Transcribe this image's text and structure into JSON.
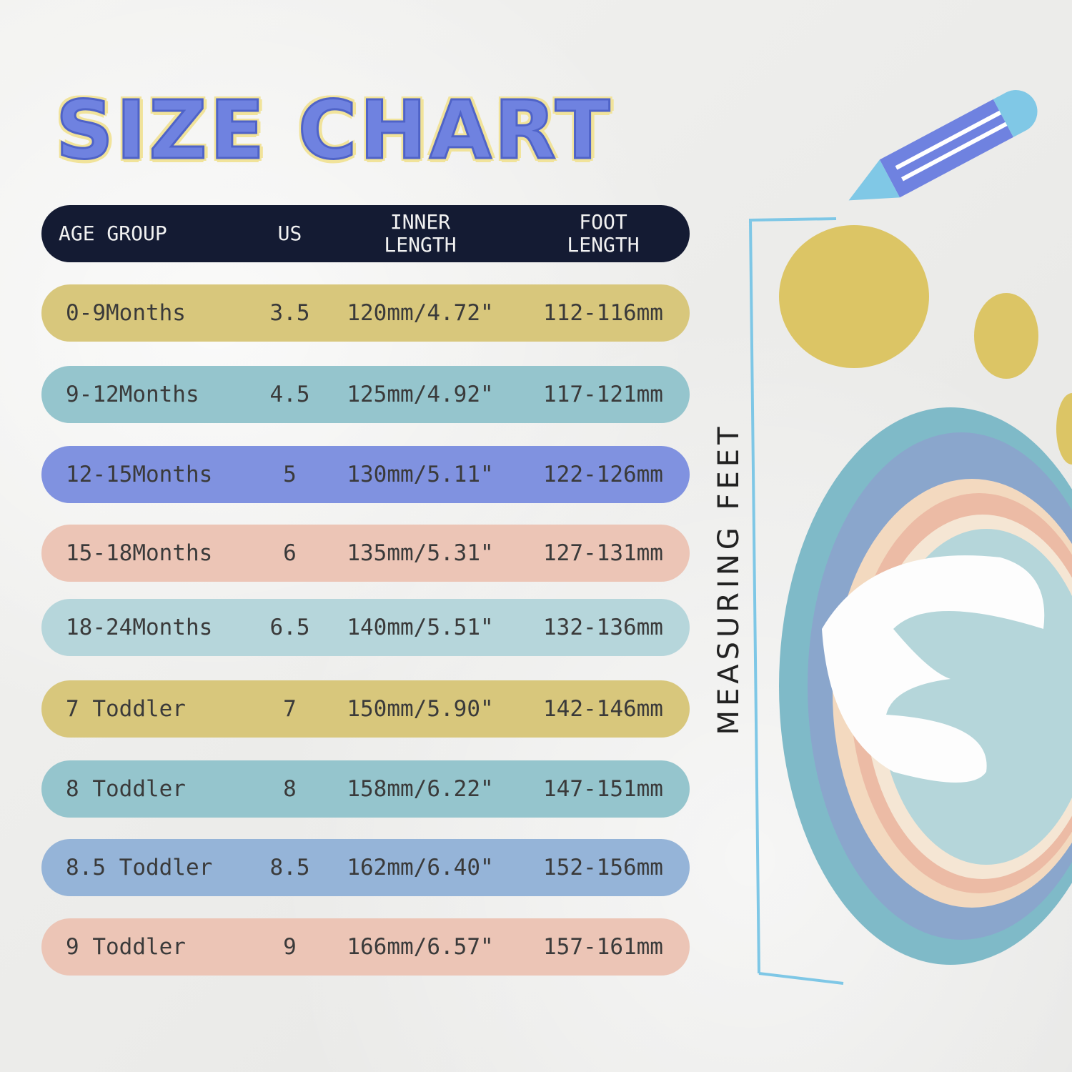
{
  "title": "SIZE CHART",
  "headers": {
    "age_group": "AGE GROUP",
    "us": "US",
    "inner_length": "INNER LENGTH",
    "foot_length": "FOOT LENGTH"
  },
  "rows": [
    {
      "age_group": "0-9Months",
      "us": "3.5",
      "inner_length": "120mm/4.72\"",
      "foot_length": "112-116mm",
      "color": "#d8c77c"
    },
    {
      "age_group": "9-12Months",
      "us": "4.5",
      "inner_length": "125mm/4.92\"",
      "foot_length": "117-121mm",
      "color": "#95c5cd"
    },
    {
      "age_group": "12-15Months",
      "us": "5",
      "inner_length": "130mm/5.11\"",
      "foot_length": "122-126mm",
      "color": "#8092e0"
    },
    {
      "age_group": "15-18Months",
      "us": "6",
      "inner_length": "135mm/5.31\"",
      "foot_length": "127-131mm",
      "color": "#ecc5b6"
    },
    {
      "age_group": "18-24Months",
      "us": "6.5",
      "inner_length": "140mm/5.51\"",
      "foot_length": "132-136mm",
      "color": "#b6d6db"
    },
    {
      "age_group": "7 Toddler",
      "us": "7",
      "inner_length": "150mm/5.90\"",
      "foot_length": "142-146mm",
      "color": "#d8c77c"
    },
    {
      "age_group": "8 Toddler",
      "us": "8",
      "inner_length": "158mm/6.22\"",
      "foot_length": "147-151mm",
      "color": "#95c5cd"
    },
    {
      "age_group": "8.5 Toddler",
      "us": "8.5",
      "inner_length": "162mm/6.40\"",
      "foot_length": "152-156mm",
      "color": "#95b4d8"
    },
    {
      "age_group": "9 Toddler",
      "us": "9",
      "inner_length": "166mm/6.57\"",
      "foot_length": "157-161mm",
      "color": "#ecc5b6"
    }
  ],
  "side_label": "MEASURING FEET",
  "colors": {
    "header_bg": "#141b33",
    "title": "#6f82e0",
    "title_outline": "#f1e39a"
  }
}
